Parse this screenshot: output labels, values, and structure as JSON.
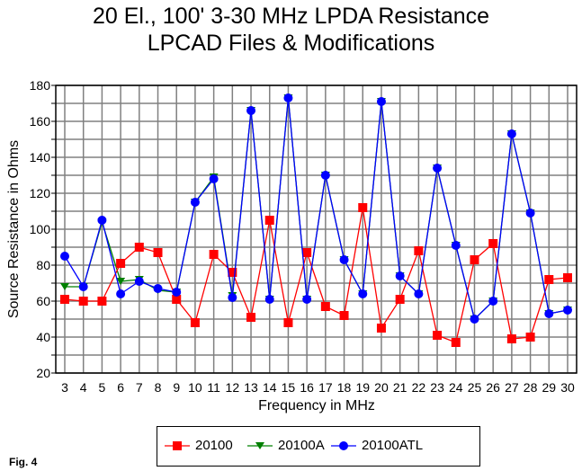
{
  "chart_data": {
    "type": "line",
    "title": "20 El., 100' 3-30 MHz LPDA Resistance",
    "subtitle": "LPCAD Files & Modifications",
    "xlabel": "Frequency in MHz",
    "ylabel": "Source Resistance in Ohms",
    "x": [
      3,
      4,
      5,
      6,
      7,
      8,
      9,
      10,
      11,
      12,
      13,
      14,
      15,
      16,
      17,
      18,
      19,
      20,
      21,
      22,
      23,
      24,
      25,
      26,
      27,
      28,
      29,
      30
    ],
    "xlim": [
      2.5,
      30.5
    ],
    "ylim": [
      20,
      180
    ],
    "yticks": [
      20,
      40,
      60,
      80,
      100,
      120,
      140,
      160,
      180
    ],
    "grid": true,
    "legend_position": "bottom",
    "series": [
      {
        "name": "20100",
        "color": "#ff0000",
        "marker": "square",
        "values": [
          61,
          60,
          60,
          81,
          90,
          87,
          61,
          48,
          86,
          76,
          51,
          105,
          48,
          87,
          57,
          52,
          112,
          45,
          61,
          88,
          41,
          37,
          83,
          92,
          39,
          40,
          72,
          73
        ]
      },
      {
        "name": "20100A",
        "color": "#008000",
        "marker": "triangle-down",
        "values": [
          68,
          68,
          104,
          71,
          72,
          66,
          65,
          115,
          129,
          63,
          166,
          61,
          173,
          61,
          130,
          83,
          64,
          171,
          74,
          64,
          134,
          91,
          50,
          60,
          153,
          109,
          53,
          55
        ]
      },
      {
        "name": "20100ATL",
        "color": "#0000ff",
        "marker": "circle",
        "values": [
          85,
          68,
          105,
          64,
          71,
          67,
          65,
          115,
          128,
          62,
          166,
          61,
          173,
          61,
          130,
          83,
          64,
          171,
          74,
          64,
          134,
          91,
          50,
          60,
          153,
          109,
          53,
          55
        ]
      }
    ]
  },
  "figure_label": "Fig. 4"
}
